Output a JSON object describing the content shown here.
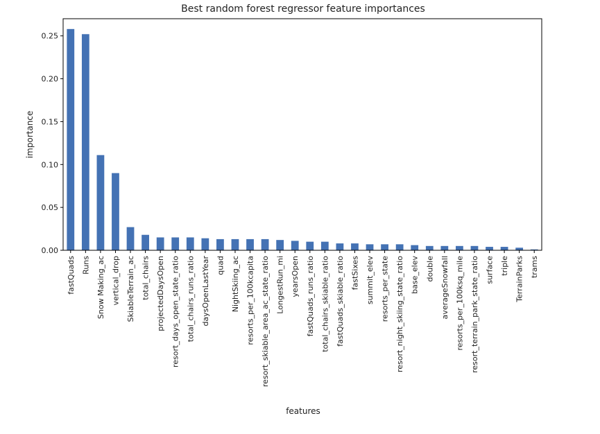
{
  "chart_data": {
    "type": "bar",
    "title": "Best random forest regressor feature importances",
    "xlabel": "features",
    "ylabel": "importance",
    "ylim": [
      0,
      0.27
    ],
    "yticks": [
      "0.00",
      "0.05",
      "0.10",
      "0.15",
      "0.20",
      "0.25"
    ],
    "grid": false,
    "bar_color": "#4472b4",
    "categories": [
      "fastQuads",
      "Runs",
      "Snow Making_ac",
      "vertical_drop",
      "SkiableTerrain_ac",
      "total_chairs",
      "projectedDaysOpen",
      "resort_days_open_state_ratio",
      "total_chairs_runs_ratio",
      "daysOpenLastYear",
      "quad",
      "NightSkiing_ac",
      "resorts_per_100kcapita",
      "resort_skiable_area_ac_state_ratio",
      "LongestRun_mi",
      "yearsOpen",
      "fastQuads_runs_ratio",
      "total_chairs_skiable_ratio",
      "fastQuads_skiable_ratio",
      "fastSixes",
      "summit_elev",
      "resorts_per_state",
      "resort_night_skiing_state_ratio",
      "base_elev",
      "double",
      "averageSnowfall",
      "resorts_per_100ksq_mile",
      "resort_terrain_park_state_ratio",
      "surface",
      "triple",
      "TerrainParks",
      "trams"
    ],
    "values": [
      0.258,
      0.252,
      0.111,
      0.09,
      0.027,
      0.018,
      0.015,
      0.015,
      0.015,
      0.014,
      0.013,
      0.013,
      0.013,
      0.013,
      0.012,
      0.011,
      0.01,
      0.01,
      0.008,
      0.008,
      0.007,
      0.007,
      0.007,
      0.006,
      0.005,
      0.005,
      0.005,
      0.005,
      0.004,
      0.004,
      0.003,
      0.001
    ]
  }
}
